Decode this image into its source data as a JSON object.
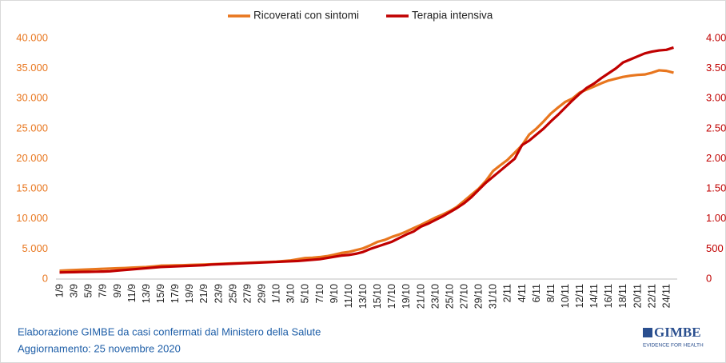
{
  "chart_data": {
    "type": "line",
    "categories": [
      "1/9",
      null,
      "3/9",
      null,
      "5/9",
      null,
      "7/9",
      null,
      "9/9",
      null,
      "11/9",
      null,
      "13/9",
      null,
      "15/9",
      null,
      "17/9",
      null,
      "19/9",
      null,
      "21/9",
      null,
      "23/9",
      null,
      "25/9",
      null,
      "27/9",
      null,
      "29/9",
      null,
      "1/10",
      null,
      "3/10",
      null,
      "5/10",
      null,
      "7/10",
      null,
      "9/10",
      null,
      "11/10",
      null,
      "13/10",
      null,
      "15/10",
      null,
      "17/10",
      null,
      "19/10",
      null,
      "21/10",
      null,
      "23/10",
      null,
      "25/10",
      null,
      "27/10",
      null,
      "29/10",
      null,
      "31/10",
      null,
      "2/11",
      null,
      "4/11",
      null,
      "6/11",
      null,
      "8/11",
      null,
      "10/11",
      null,
      "12/11",
      null,
      "14/11",
      null,
      "16/11",
      null,
      "18/11",
      null,
      "20/11",
      null,
      "22/11",
      null,
      "24/11",
      null
    ],
    "series": [
      {
        "name": "Ricoverati con sintomi",
        "color": "#e8761e",
        "values": [
          1380,
          1450,
          1500,
          1550,
          1600,
          1650,
          1700,
          1750,
          1790,
          1836,
          1900,
          1950,
          2000,
          2100,
          2222,
          2250,
          2280,
          2300,
          2340,
          2380,
          2420,
          2460,
          2520,
          2560,
          2604,
          2650,
          2700,
          2750,
          2800,
          2846,
          2900,
          3000,
          3100,
          3300,
          3487,
          3550,
          3650,
          3800,
          4050,
          4336,
          4500,
          4800,
          5100,
          5600,
          6178,
          6500,
          7000,
          7400,
          7900,
          8454,
          9000,
          9600,
          10200,
          10700,
          11287,
          12000,
          13000,
          14000,
          15000,
          16300,
          17953,
          18900,
          19800,
          21000,
          22200,
          24005,
          25000,
          26200,
          27500,
          28500,
          29444,
          30000,
          31000,
          31500,
          32000,
          32536,
          33000,
          33300,
          33600,
          33800,
          33932,
          34000,
          34300,
          34697,
          34600,
          34300
        ]
      },
      {
        "name": "Terapia intensiva",
        "color": "#c00000",
        "axis": "y2",
        "values": [
          110,
          112,
          115,
          118,
          120,
          122,
          125,
          130,
          140,
          150,
          160,
          170,
          180,
          190,
          200,
          205,
          210,
          215,
          220,
          225,
          230,
          240,
          245,
          250,
          255,
          260,
          265,
          270,
          275,
          280,
          285,
          290,
          295,
          300,
          310,
          320,
          330,
          350,
          370,
          390,
          400,
          420,
          450,
          500,
          540,
          580,
          620,
          680,
          740,
          790,
          870,
          920,
          980,
          1040,
          1110,
          1180,
          1260,
          1360,
          1480,
          1600,
          1700,
          1800,
          1900,
          2000,
          2225,
          2300,
          2400,
          2500,
          2620,
          2730,
          2850,
          2970,
          3080,
          3180,
          3250,
          3340,
          3420,
          3500,
          3600,
          3650,
          3700,
          3750,
          3780,
          3800,
          3810,
          3848
        ]
      }
    ],
    "ylim": [
      0,
      40000
    ],
    "yticks": [
      0,
      {
        "value": 5000,
        "label": "5.000"
      },
      {
        "value": 10000,
        "label": "10.000"
      },
      {
        "value": 15000,
        "label": "15.000"
      },
      {
        "value": 20000,
        "label": "20.000"
      },
      {
        "value": 25000,
        "label": "25.000"
      },
      {
        "value": 30000,
        "label": "30.000"
      },
      {
        "value": 35000,
        "label": "35.000"
      },
      {
        "value": 40000,
        "label": "40.000"
      }
    ],
    "y2lim": [
      0,
      4000
    ],
    "y2ticks": [
      0,
      500,
      {
        "value": 1000,
        "label": "1.000"
      },
      {
        "value": 1500,
        "label": "1.500"
      },
      {
        "value": 2000,
        "label": "2.000"
      },
      {
        "value": 2500,
        "label": "2.500"
      },
      {
        "value": 3000,
        "label": "3.000"
      },
      {
        "value": 3500,
        "label": "3.500"
      },
      {
        "value": 4000,
        "label": "4.000"
      }
    ],
    "grid": false,
    "legend": "top",
    "annotations": [
      "Elaborazione GIMBE da casi confermati dal Ministero della Salute",
      "Aggiornamento: 25 novembre 2020"
    ]
  },
  "logo": {
    "name": "GIMBE",
    "tagline": "EVIDENCE FOR HEALTH"
  }
}
